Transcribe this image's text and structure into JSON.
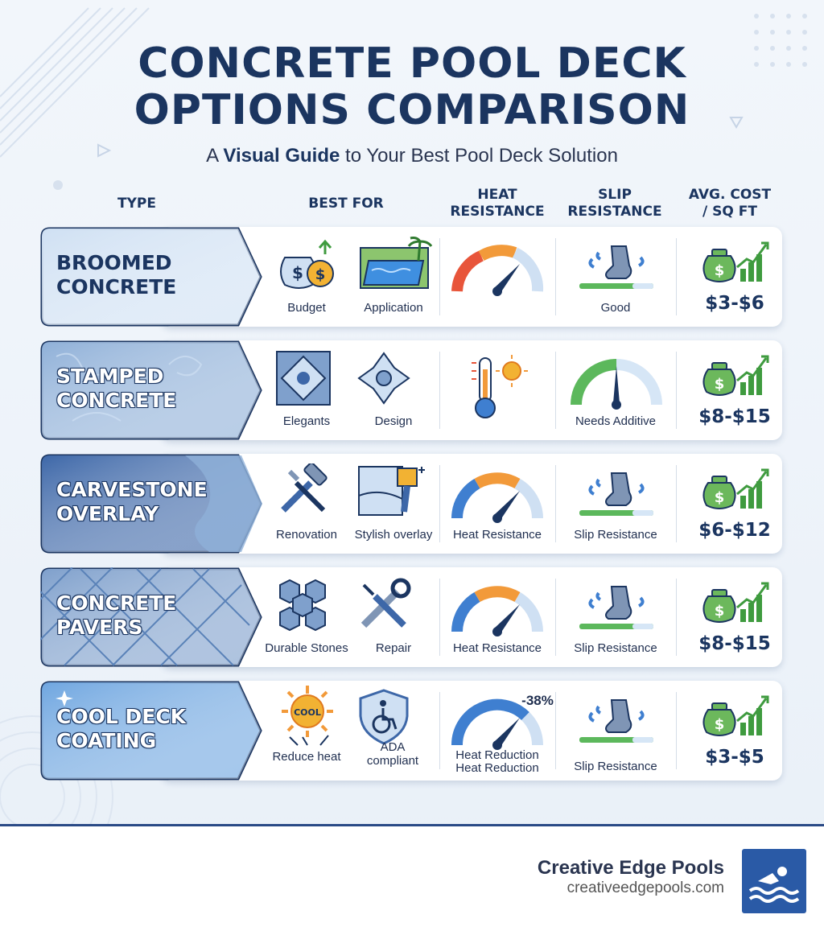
{
  "title": {
    "line1": "CONCRETE POOL DECK",
    "line2": "OPTIONS COMPARISON"
  },
  "subtitle": {
    "prefix": "A ",
    "emphasis": "Visual Guide",
    "suffix": " to Your Best Pool Deck Solution"
  },
  "headers": {
    "type": "TYPE",
    "best_for": "BEST FOR",
    "heat": [
      "HEAT",
      "RESISTANCE"
    ],
    "slip": [
      "SLIP",
      "RESISTANCE"
    ],
    "cost": [
      "AVG. COST",
      "/ SQ FT"
    ]
  },
  "rows": [
    {
      "type": [
        "BROOMED",
        "CONCRETE"
      ],
      "best_for": [
        "Budget",
        "Application"
      ],
      "heat_label": "",
      "slip_label": "Good",
      "cost": "$3-$6",
      "tag_color": "#cfe0f3"
    },
    {
      "type": [
        "STAMPED",
        "CONCRETE"
      ],
      "best_for": [
        "Elegants",
        "Design"
      ],
      "heat_label": "",
      "slip_label": "Needs Additive",
      "cost": "$8-$15",
      "tag_color": "#8fb0d8"
    },
    {
      "type": [
        "CARVESTONE",
        "OVERLAY"
      ],
      "best_for": [
        "Renovation",
        "Stylish overlay"
      ],
      "heat_label": "Heat Resistance",
      "slip_label": "Slip Resistance",
      "cost": "$6-$12",
      "tag_color": "#3d67a8"
    },
    {
      "type": [
        "CONCRETE",
        "PAVERS"
      ],
      "best_for": [
        "Durable Stones",
        "Repair"
      ],
      "heat_label": "Heat Resistance",
      "slip_label": "Slip Resistance",
      "cost": "$8-$15",
      "tag_color": "#7fa0cc"
    },
    {
      "type": [
        "COOL DECK",
        "COATING"
      ],
      "best_for": [
        "Reduce heat",
        "ADA compliant"
      ],
      "heat_label": "Heat Reduction",
      "heat_label2": "Heat Reduction",
      "heat_badge": "-38%",
      "slip_label": "Slip Resistance",
      "cost": "$3-$5",
      "tag_color": "#6fa6e0"
    }
  ],
  "icon_text": {
    "cool_sun": "COOL",
    "dollar": "$"
  },
  "footer": {
    "brand": "Creative Edge Pools",
    "url": "creativeedgepools.com"
  },
  "colors": {
    "navy": "#1b3560",
    "green": "#3f9b3f",
    "gold": "#f2b233",
    "orange": "#f29a3a",
    "blue": "#3f7fd0"
  }
}
